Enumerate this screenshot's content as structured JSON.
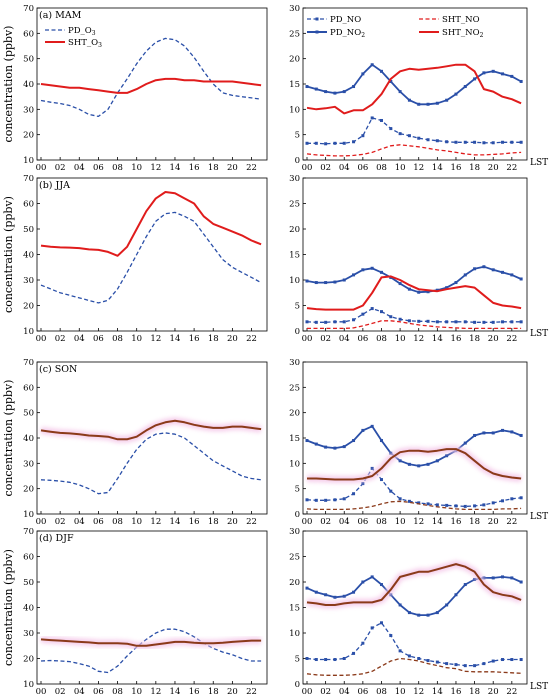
{
  "y_axis_label": "concentration (ppbv)",
  "x_unit": "LST",
  "x_tick_labels": [
    "00",
    "02",
    "04",
    "06",
    "08",
    "10",
    "12",
    "14",
    "16",
    "18",
    "20",
    "22"
  ],
  "colors": {
    "PD_O3": "#2a4fa8",
    "SHT_O3_ma_jja": "#e01c1c",
    "SHT_O3_son_djf": "#8b3a1a",
    "PD_NO": "#2a4fa8",
    "SHT_NO": "#e01c1c",
    "SHT_NO_son_djf": "#8b3a1a",
    "PD_NO2": "#2a4fa8",
    "SHT_NO2": "#e01c1c",
    "SHT_NO2_son_djf": "#8b3a1a",
    "shade": "#f4c6e8"
  },
  "chart_data": [
    {
      "type": "line",
      "panel": "MAM-O3",
      "title": "(a) MAM",
      "x": [
        0,
        1,
        2,
        3,
        4,
        5,
        6,
        7,
        8,
        9,
        10,
        11,
        12,
        13,
        14,
        15,
        16,
        17,
        18,
        19,
        20,
        21,
        22,
        23
      ],
      "ylim": [
        10,
        70
      ],
      "yticks": [
        10,
        20,
        30,
        40,
        50,
        60,
        70
      ],
      "legend": "top-left",
      "series": [
        {
          "name": "PD_O",
          "sub": "3",
          "style": "dashed",
          "color": "#2a4fa8",
          "values": [
            33.5,
            32.8,
            32.3,
            31.5,
            30,
            28,
            27.2,
            30,
            36.5,
            42,
            48,
            53,
            56.5,
            58,
            57.5,
            55,
            50.5,
            45,
            40,
            36.5,
            35.5,
            35,
            34.5,
            34
          ]
        },
        {
          "name": "SHT_O",
          "sub": "3",
          "style": "solid",
          "color": "#e01c1c",
          "values": [
            40,
            39.5,
            39,
            38.5,
            38.5,
            38,
            37.5,
            37,
            36.5,
            36.5,
            38,
            40,
            41.5,
            42,
            42,
            41.5,
            41.5,
            41,
            41,
            41,
            41,
            40.5,
            40,
            39.5
          ]
        }
      ]
    },
    {
      "type": "line",
      "panel": "MAM-NOx",
      "x": [
        0,
        1,
        2,
        3,
        4,
        5,
        6,
        7,
        8,
        9,
        10,
        11,
        12,
        13,
        14,
        15,
        16,
        17,
        18,
        19,
        20,
        21,
        22,
        23
      ],
      "ylim": [
        0,
        30
      ],
      "yticks": [
        0,
        5,
        10,
        15,
        20,
        25,
        30
      ],
      "legend": "top",
      "series": [
        {
          "name": "PD_NO",
          "style": "dashed-square",
          "color": "#2a4fa8",
          "values": [
            3.3,
            3.3,
            3.2,
            3.3,
            3.3,
            3.6,
            4.8,
            8.3,
            7.8,
            6.2,
            5.2,
            4.8,
            4.3,
            4,
            3.8,
            3.6,
            3.5,
            3.5,
            3.5,
            3.4,
            3.4,
            3.5,
            3.5,
            3.5
          ]
        },
        {
          "name": "SHT_NO",
          "style": "dashed",
          "color": "#e01c1c",
          "values": [
            1.2,
            1,
            0.9,
            0.8,
            0.8,
            0.9,
            1.1,
            1.5,
            2.2,
            2.8,
            3,
            2.8,
            2.6,
            2.3,
            2,
            1.8,
            1.5,
            1.2,
            1,
            1,
            1.1,
            1.2,
            1.4,
            1.5
          ]
        },
        {
          "name": "PD_NO",
          "sub": "2",
          "style": "solid-square",
          "color": "#2a4fa8",
          "values": [
            14.5,
            14,
            13.5,
            13.2,
            13.5,
            14.5,
            17,
            18.8,
            17.5,
            15.5,
            13.5,
            11.8,
            11,
            11,
            11.2,
            11.8,
            13,
            14.5,
            16,
            17.2,
            17.5,
            17,
            16.5,
            15.5
          ]
        },
        {
          "name": "SHT_NO",
          "sub": "2",
          "style": "solid",
          "color": "#e01c1c",
          "values": [
            10.3,
            10,
            10.2,
            10.5,
            9.2,
            9.8,
            9.8,
            11,
            13,
            16,
            17.5,
            18,
            17.8,
            18,
            18.2,
            18.5,
            18.8,
            18.8,
            17.5,
            14,
            13.5,
            12.5,
            12,
            11.2
          ]
        }
      ]
    },
    {
      "type": "line",
      "panel": "JJA-O3",
      "title": "(b) JJA",
      "x": [
        0,
        1,
        2,
        3,
        4,
        5,
        6,
        7,
        8,
        9,
        10,
        11,
        12,
        13,
        14,
        15,
        16,
        17,
        18,
        19,
        20,
        21,
        22,
        23
      ],
      "ylim": [
        10,
        70
      ],
      "yticks": [
        10,
        20,
        30,
        40,
        50,
        60,
        70
      ],
      "series": [
        {
          "name": "PD_O3",
          "style": "dashed",
          "color": "#2a4fa8",
          "values": [
            28,
            26.5,
            25,
            24,
            23,
            22,
            21,
            22,
            26.5,
            33,
            40,
            47,
            53,
            56,
            56.5,
            55,
            53,
            48,
            43,
            38,
            35,
            33,
            31,
            29
          ]
        },
        {
          "name": "SHT_O3",
          "style": "solid",
          "color": "#e01c1c",
          "values": [
            43.5,
            43,
            42.8,
            42.7,
            42.5,
            42,
            41.8,
            41,
            39.5,
            43,
            50,
            57,
            62,
            64.5,
            64,
            62,
            60,
            55,
            52,
            50.5,
            49,
            47.5,
            45.5,
            44
          ]
        }
      ]
    },
    {
      "type": "line",
      "panel": "JJA-NOx",
      "x": [
        0,
        1,
        2,
        3,
        4,
        5,
        6,
        7,
        8,
        9,
        10,
        11,
        12,
        13,
        14,
        15,
        16,
        17,
        18,
        19,
        20,
        21,
        22,
        23
      ],
      "ylim": [
        0,
        30
      ],
      "yticks": [
        0,
        5,
        10,
        15,
        20,
        25,
        30
      ],
      "series": [
        {
          "name": "PD_NO",
          "style": "dashed-square",
          "color": "#2a4fa8",
          "values": [
            1.8,
            1.7,
            1.7,
            1.8,
            1.8,
            2.2,
            3.3,
            4.4,
            3.8,
            2.8,
            2.3,
            2,
            1.9,
            1.9,
            1.8,
            1.8,
            1.8,
            1.8,
            1.7,
            1.7,
            1.7,
            1.8,
            1.8,
            1.8
          ]
        },
        {
          "name": "SHT_NO",
          "style": "dashed",
          "color": "#e01c1c",
          "values": [
            0.5,
            0.5,
            0.5,
            0.5,
            0.5,
            0.6,
            1,
            1.5,
            2,
            2,
            1.8,
            1.5,
            1.2,
            1,
            0.8,
            0.7,
            0.6,
            0.5,
            0.5,
            0.5,
            0.5,
            0.5,
            0.5,
            0.5
          ]
        },
        {
          "name": "PD_NO2",
          "style": "solid-square",
          "color": "#2a4fa8",
          "values": [
            9.8,
            9.5,
            9.5,
            9.6,
            10,
            11,
            12,
            12.3,
            11.5,
            10.5,
            9.3,
            8.2,
            7.6,
            7.7,
            8,
            8.5,
            9.5,
            11,
            12.2,
            12.6,
            12,
            11.5,
            11,
            10.2
          ]
        },
        {
          "name": "SHT_NO2",
          "style": "solid",
          "color": "#e01c1c",
          "values": [
            4.5,
            4.3,
            4.2,
            4.2,
            4.2,
            4.2,
            5,
            7.5,
            10.5,
            10.7,
            10,
            9,
            8.2,
            8,
            7.8,
            8.2,
            8.5,
            8.8,
            8.5,
            7,
            5.5,
            5,
            4.8,
            4.5
          ]
        }
      ]
    },
    {
      "type": "line",
      "panel": "SON-O3",
      "title": "(c) SON",
      "x": [
        0,
        1,
        2,
        3,
        4,
        5,
        6,
        7,
        8,
        9,
        10,
        11,
        12,
        13,
        14,
        15,
        16,
        17,
        18,
        19,
        20,
        21,
        22,
        23
      ],
      "ylim": [
        10,
        70
      ],
      "yticks": [
        10,
        20,
        30,
        40,
        50,
        60,
        70
      ],
      "series": [
        {
          "name": "PD_O3",
          "style": "dashed",
          "color": "#2a4fa8",
          "values": [
            23.5,
            23.3,
            23,
            22.5,
            21.5,
            20,
            18,
            18.5,
            24,
            30,
            35.5,
            39.5,
            41.5,
            42,
            41.5,
            40,
            37,
            34,
            31,
            29,
            27,
            25,
            24,
            23.5
          ]
        },
        {
          "name": "SHT_O3",
          "style": "solid",
          "color": "#8b3a1a",
          "values": [
            43,
            42.5,
            42,
            41.8,
            41.5,
            41,
            40.8,
            40.5,
            39.5,
            39.5,
            40.5,
            43,
            45,
            46.2,
            46.8,
            46.2,
            45.2,
            44.5,
            44,
            44,
            44.5,
            44.5,
            44,
            43.5
          ]
        }
      ]
    },
    {
      "type": "line",
      "panel": "SON-NOx",
      "x": [
        0,
        1,
        2,
        3,
        4,
        5,
        6,
        7,
        8,
        9,
        10,
        11,
        12,
        13,
        14,
        15,
        16,
        17,
        18,
        19,
        20,
        21,
        22,
        23
      ],
      "ylim": [
        0,
        30
      ],
      "yticks": [
        0,
        5,
        10,
        15,
        20,
        25,
        30
      ],
      "series": [
        {
          "name": "PD_NO",
          "style": "dashed-square",
          "color": "#2a4fa8",
          "values": [
            2.8,
            2.7,
            2.7,
            2.8,
            3,
            4,
            6,
            9,
            6.8,
            4.5,
            3,
            2.5,
            2.2,
            2,
            1.8,
            1.7,
            1.6,
            1.5,
            1.6,
            1.8,
            2.2,
            2.6,
            3,
            3.2
          ]
        },
        {
          "name": "SHT_NO",
          "style": "dashed",
          "color": "#8b3a1a",
          "values": [
            1,
            0.9,
            0.9,
            0.9,
            0.9,
            1,
            1.2,
            1.5,
            2,
            2.4,
            2.5,
            2.3,
            2,
            1.7,
            1.4,
            1.2,
            1,
            0.9,
            0.9,
            0.9,
            0.9,
            1,
            1,
            1.1
          ]
        },
        {
          "name": "PD_NO2",
          "style": "solid-square",
          "color": "#2a4fa8",
          "values": [
            14.5,
            13.8,
            13.2,
            13,
            13.3,
            14.5,
            16.5,
            17.3,
            14.5,
            12,
            10.5,
            9.8,
            9.5,
            9.8,
            10.5,
            11.5,
            12.5,
            14,
            15.5,
            16,
            16,
            16.5,
            16.2,
            15.5
          ]
        },
        {
          "name": "SHT_NO2",
          "style": "solid",
          "color": "#8b3a1a",
          "values": [
            7,
            7,
            6.9,
            6.8,
            6.8,
            6.8,
            7,
            7.5,
            9,
            11,
            12.2,
            12.5,
            12.5,
            12.3,
            12.5,
            12.8,
            12.8,
            12,
            10.5,
            9,
            8,
            7.5,
            7.2,
            7
          ]
        }
      ]
    },
    {
      "type": "line",
      "panel": "DJF-O3",
      "title": "(d) DJF",
      "x": [
        0,
        1,
        2,
        3,
        4,
        5,
        6,
        7,
        8,
        9,
        10,
        11,
        12,
        13,
        14,
        15,
        16,
        17,
        18,
        19,
        20,
        21,
        22,
        23
      ],
      "ylim": [
        10,
        70
      ],
      "yticks": [
        10,
        20,
        30,
        40,
        50,
        60,
        70
      ],
      "series": [
        {
          "name": "PD_O3",
          "style": "dashed",
          "color": "#2a4fa8",
          "values": [
            19,
            19.2,
            19,
            18.8,
            18,
            17,
            15,
            14.5,
            17,
            21,
            24.5,
            27.5,
            30,
            31.5,
            31.5,
            30.5,
            28.5,
            26,
            24,
            22.5,
            21.5,
            20,
            19,
            19
          ]
        },
        {
          "name": "SHT_O3",
          "style": "solid",
          "color": "#8b3a1a",
          "values": [
            27.5,
            27.2,
            27,
            26.8,
            26.5,
            26.3,
            26,
            26,
            26,
            25.8,
            25,
            25,
            25.5,
            26,
            26.5,
            26.5,
            26.2,
            26,
            26,
            26.2,
            26.5,
            26.8,
            27,
            27
          ]
        }
      ]
    },
    {
      "type": "line",
      "panel": "DJF-NOx",
      "x": [
        0,
        1,
        2,
        3,
        4,
        5,
        6,
        7,
        8,
        9,
        10,
        11,
        12,
        13,
        14,
        15,
        16,
        17,
        18,
        19,
        20,
        21,
        22,
        23
      ],
      "ylim": [
        0,
        30
      ],
      "yticks": [
        0,
        5,
        10,
        15,
        20,
        25,
        30
      ],
      "series": [
        {
          "name": "PD_NO",
          "style": "dashed-square",
          "color": "#2a4fa8",
          "values": [
            5,
            4.8,
            4.8,
            4.8,
            5,
            6,
            8,
            11,
            12,
            9.5,
            6.5,
            5.5,
            5,
            4.6,
            4.3,
            4,
            3.8,
            3.6,
            3.6,
            4,
            4.5,
            4.8,
            4.8,
            4.8
          ]
        },
        {
          "name": "SHT_NO",
          "style": "dashed",
          "color": "#8b3a1a",
          "values": [
            2,
            1.8,
            1.7,
            1.7,
            1.7,
            1.8,
            2,
            2.5,
            3.5,
            4.5,
            5,
            4.8,
            4.5,
            4,
            3.6,
            3.2,
            3,
            2.5,
            2.4,
            2.4,
            2.4,
            2.3,
            2.2,
            2.1
          ]
        },
        {
          "name": "PD_NO2",
          "style": "solid-square",
          "color": "#2a4fa8",
          "values": [
            18.8,
            18,
            17.5,
            17,
            17.2,
            18,
            20,
            21,
            19.5,
            17.5,
            15.5,
            14,
            13.5,
            13.5,
            14,
            15.5,
            17.5,
            19.5,
            20.5,
            20.8,
            20.8,
            21,
            20.8,
            20
          ]
        },
        {
          "name": "SHT_NO2",
          "style": "solid",
          "color": "#8b3a1a",
          "values": [
            16,
            15.8,
            15.5,
            15.5,
            15.8,
            16,
            16,
            16,
            16.5,
            18.5,
            21,
            21.5,
            22,
            22,
            22.5,
            23,
            23.5,
            23,
            22,
            19.5,
            18,
            17.5,
            17.2,
            16.5
          ]
        }
      ]
    }
  ]
}
